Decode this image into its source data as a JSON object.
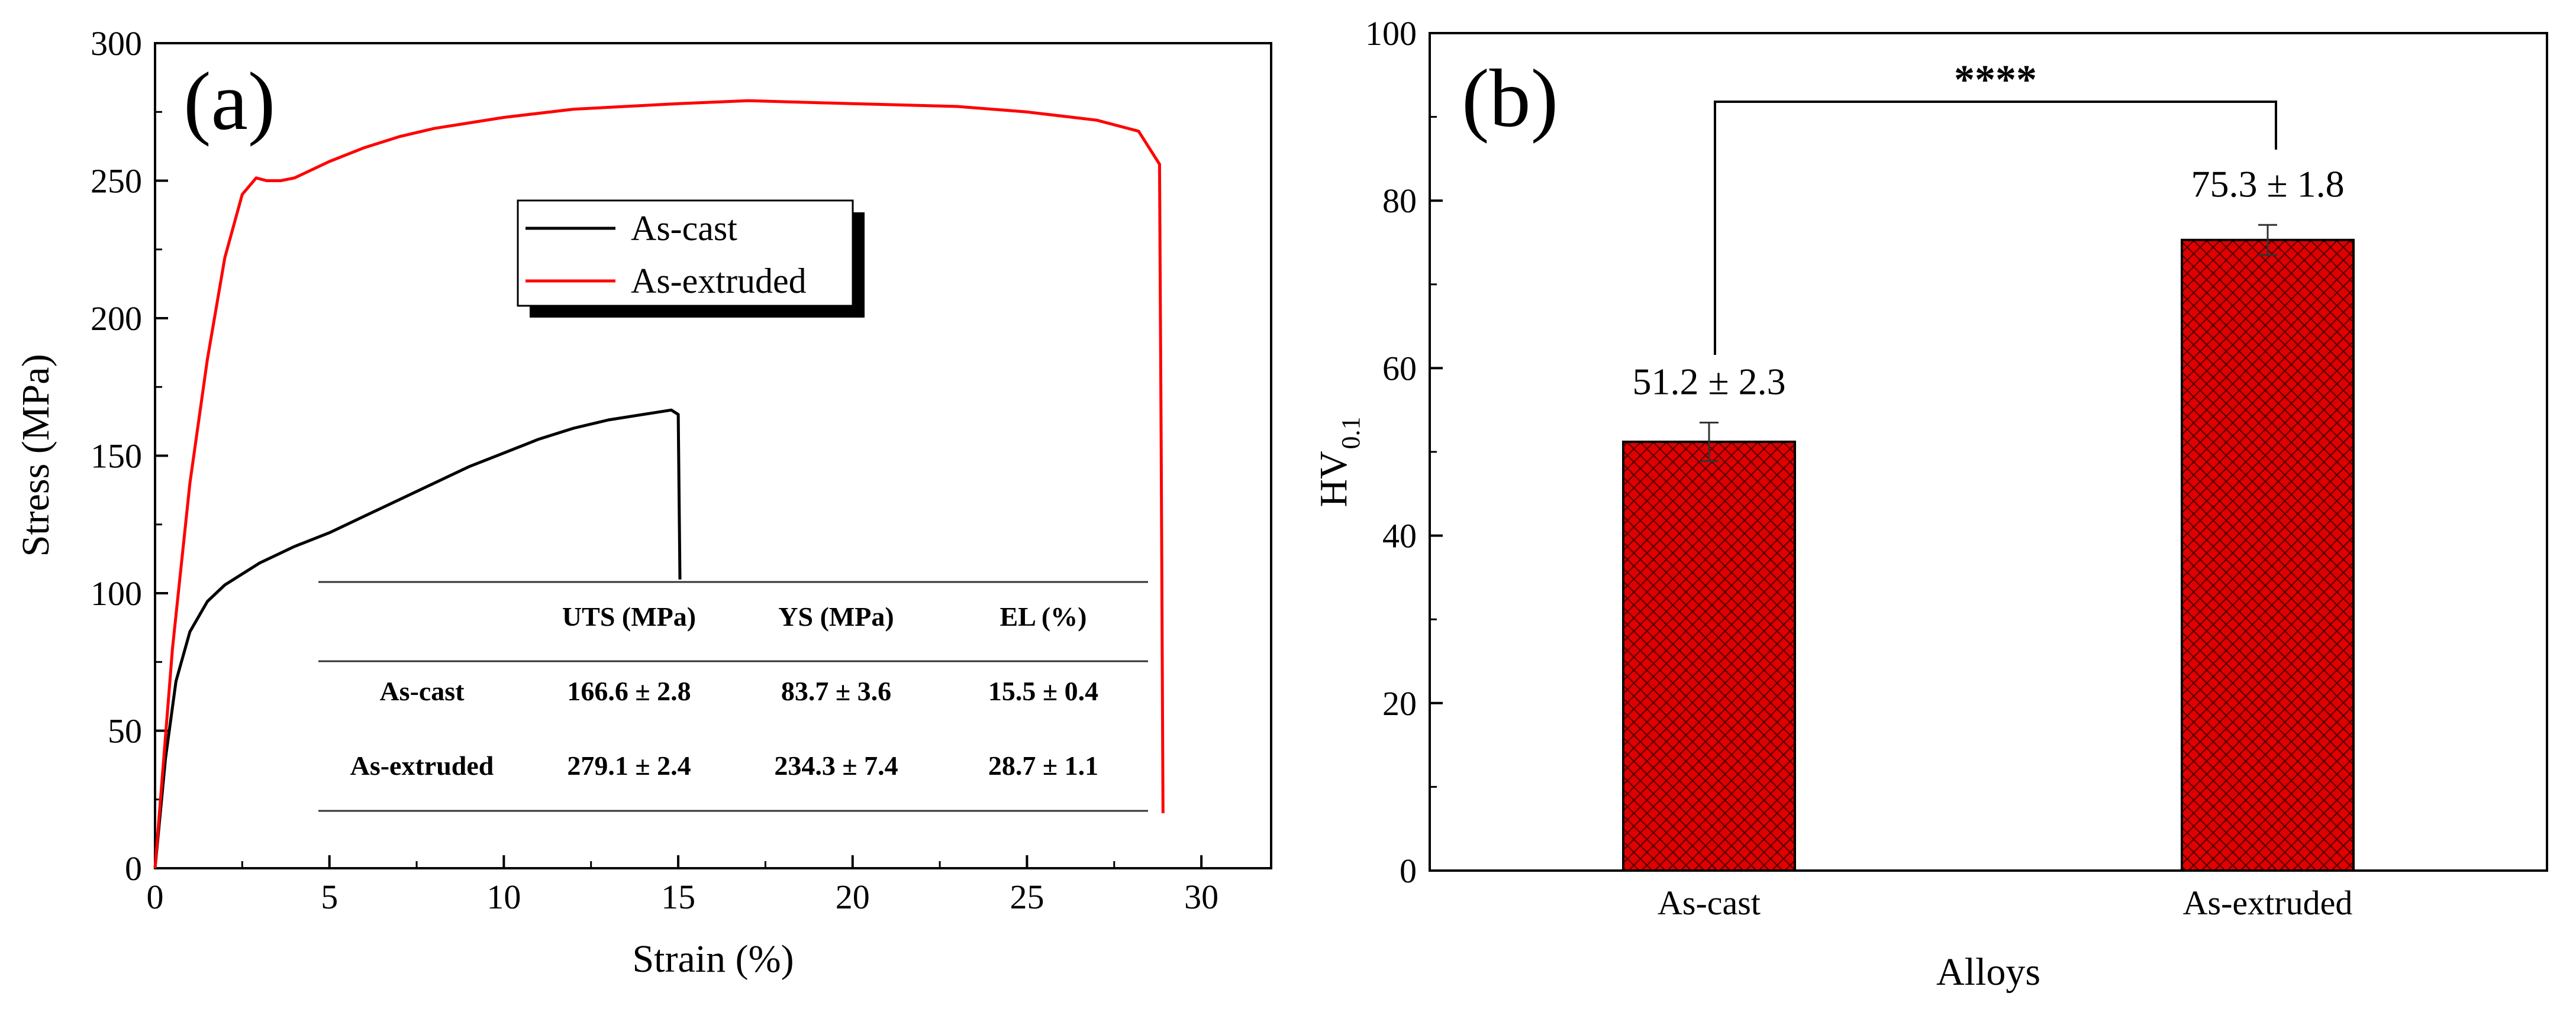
{
  "chart_data": [
    {
      "panel": "(a)",
      "type": "line",
      "xlabel": "Strain (%)",
      "ylabel": "Stress (MPa)",
      "xlim": [
        0,
        32
      ],
      "ylim": [
        0,
        300
      ],
      "xticks": [
        "0",
        "5",
        "10",
        "15",
        "20",
        "25",
        "30"
      ],
      "yticks": [
        "0",
        "50",
        "100",
        "150",
        "200",
        "250",
        "300"
      ],
      "legend": {
        "position": "upper-center",
        "entries": [
          {
            "label": "As-cast",
            "color": "#000000"
          },
          {
            "label": "As-extruded",
            "color": "#ff0000"
          }
        ]
      },
      "series": [
        {
          "name": "As-cast",
          "color": "#000000",
          "x": [
            0,
            0.3,
            0.6,
            1.0,
            1.5,
            2.0,
            3.0,
            4.0,
            5.0,
            6.0,
            7.0,
            8.0,
            9.0,
            10.0,
            11.0,
            12.0,
            13.0,
            14.0,
            14.8,
            15.0,
            15.05
          ],
          "y": [
            0,
            40,
            68,
            86,
            97,
            103,
            111,
            117,
            122,
            128,
            134,
            140,
            146,
            151,
            156,
            160,
            163,
            165,
            166.6,
            165,
            105
          ]
        },
        {
          "name": "As-extruded",
          "color": "#ff0000",
          "x": [
            0,
            0.5,
            1.0,
            1.5,
            2.0,
            2.5,
            2.9,
            3.2,
            3.6,
            4.0,
            5.0,
            6.0,
            7.0,
            8.0,
            10.0,
            12.0,
            15.0,
            17.0,
            20.0,
            23.0,
            25.0,
            27.0,
            28.2,
            28.8,
            28.85,
            28.9
          ],
          "y": [
            0,
            80,
            140,
            185,
            222,
            245,
            251,
            250,
            250,
            251,
            257,
            262,
            266,
            269,
            273,
            276,
            278,
            279.1,
            278,
            277,
            275,
            272,
            268,
            256,
            150,
            20
          ]
        }
      ],
      "table": {
        "headers": [
          "",
          "UTS (MPa)",
          "YS (MPa)",
          "EL (%)"
        ],
        "rows": [
          [
            "As-cast",
            "166.6 ± 2.8",
            "83.7 ± 3.6",
            "15.5 ± 0.4"
          ],
          [
            "As-extruded",
            "279.1 ± 2.4",
            "234.3 ± 7.4",
            "28.7 ± 1.1"
          ]
        ]
      }
    },
    {
      "panel": "(b)",
      "type": "bar",
      "xlabel": "Alloys",
      "ylabel_main": "HV",
      "ylabel_sub": "0.1",
      "ylim": [
        0,
        100
      ],
      "yticks": [
        "0",
        "20",
        "40",
        "60",
        "80",
        "100"
      ],
      "categories": [
        "As-cast",
        "As-extruded"
      ],
      "values": [
        51.2,
        75.3
      ],
      "errors": [
        2.3,
        1.8
      ],
      "value_labels": [
        "51.2 ± 2.3",
        "75.3 ± 1.8"
      ],
      "bar_color": "#dd0000",
      "significance": "****"
    }
  ]
}
